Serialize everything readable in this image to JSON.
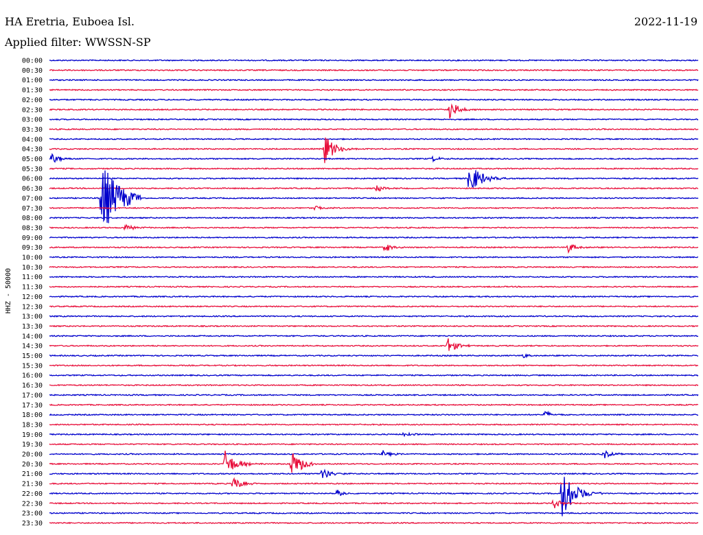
{
  "header": {
    "title": "HA Eretria, Euboea Isl.",
    "date": "2022-11-19",
    "filter": "Applied filter: WWSSN-SP"
  },
  "colors": {
    "blue": "#0000cc",
    "red": "#e8103c"
  },
  "chart_data": {
    "type": "line",
    "title": "HA Eretria, Euboea Isl.",
    "subtitle": "Applied filter: WWSSN-SP",
    "ylabel": "HHZ - 50000",
    "xlabel": "",
    "row_color_cycle": [
      "blue",
      "red"
    ],
    "rows": [
      "00:00",
      "00:30",
      "01:00",
      "01:30",
      "02:00",
      "02:30",
      "03:00",
      "03:30",
      "04:00",
      "04:30",
      "05:00",
      "05:30",
      "06:00",
      "06:30",
      "07:00",
      "07:30",
      "08:00",
      "08:30",
      "09:00",
      "09:30",
      "10:00",
      "10:30",
      "11:00",
      "11:30",
      "12:00",
      "12:30",
      "13:00",
      "13:30",
      "14:00",
      "14:30",
      "15:00",
      "15:30",
      "16:00",
      "16:30",
      "17:00",
      "17:30",
      "18:00",
      "18:30",
      "19:00",
      "19:30",
      "20:00",
      "20:30",
      "21:00",
      "21:30",
      "22:00",
      "22:30",
      "23:00",
      "23:30"
    ],
    "events": [
      {
        "row": "02:30",
        "minute": 18.5,
        "amp": 1.0
      },
      {
        "row": "04:30",
        "minute": 12.7,
        "amp": 1.6
      },
      {
        "row": "05:00",
        "minute": 0.1,
        "amp": 0.6
      },
      {
        "row": "05:00",
        "minute": 17.7,
        "amp": 0.3
      },
      {
        "row": "06:00",
        "minute": 19.4,
        "amp": 1.8
      },
      {
        "row": "06:30",
        "minute": 15.1,
        "amp": 0.4
      },
      {
        "row": "07:00",
        "minute": 2.4,
        "amp": 4.0
      },
      {
        "row": "07:30",
        "minute": 12.3,
        "amp": 0.3
      },
      {
        "row": "08:30",
        "minute": 3.5,
        "amp": 0.4
      },
      {
        "row": "09:30",
        "minute": 15.5,
        "amp": 0.5
      },
      {
        "row": "09:30",
        "minute": 24.0,
        "amp": 0.6
      },
      {
        "row": "14:30",
        "minute": 18.4,
        "amp": 0.9
      },
      {
        "row": "15:00",
        "minute": 21.9,
        "amp": 0.3
      },
      {
        "row": "18:00",
        "minute": 22.9,
        "amp": 0.4
      },
      {
        "row": "19:00",
        "minute": 16.4,
        "amp": 0.3
      },
      {
        "row": "20:00",
        "minute": 15.4,
        "amp": 0.4
      },
      {
        "row": "20:00",
        "minute": 25.6,
        "amp": 0.5
      },
      {
        "row": "20:30",
        "minute": 8.1,
        "amp": 1.5
      },
      {
        "row": "20:30",
        "minute": 11.2,
        "amp": 1.5
      },
      {
        "row": "21:00",
        "minute": 12.6,
        "amp": 0.7
      },
      {
        "row": "21:30",
        "minute": 8.5,
        "amp": 0.8
      },
      {
        "row": "22:00",
        "minute": 23.7,
        "amp": 2.5
      },
      {
        "row": "22:00",
        "minute": 13.3,
        "amp": 0.4
      },
      {
        "row": "22:30",
        "minute": 23.3,
        "amp": 0.6
      }
    ]
  }
}
